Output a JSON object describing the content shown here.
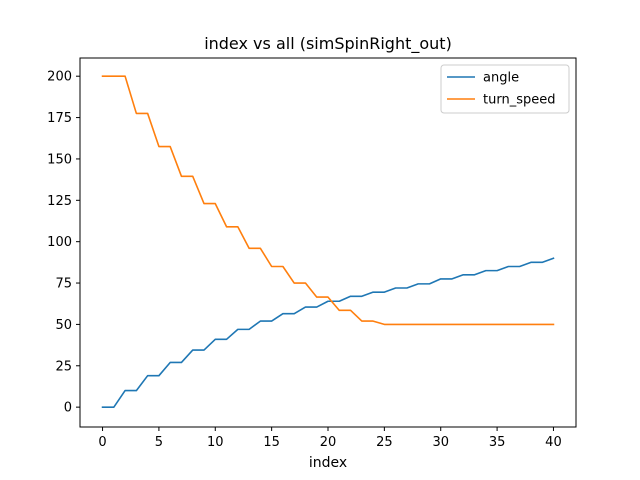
{
  "chart_data": {
    "type": "line",
    "title": "index vs all (simSpinRight_out)",
    "xlabel": "index",
    "ylabel": "",
    "xlim": [
      -2,
      42
    ],
    "ylim": [
      -12,
      211
    ],
    "xticks": [
      0,
      5,
      10,
      15,
      20,
      25,
      30,
      35,
      40
    ],
    "yticks": [
      0,
      25,
      50,
      75,
      100,
      125,
      150,
      175,
      200
    ],
    "grid": false,
    "legend_position": "top-right",
    "x": [
      0,
      1,
      2,
      3,
      4,
      5,
      6,
      7,
      8,
      9,
      10,
      11,
      12,
      13,
      14,
      15,
      16,
      17,
      18,
      19,
      20,
      21,
      22,
      23,
      24,
      25,
      26,
      27,
      28,
      29,
      30,
      31,
      32,
      33,
      34,
      35,
      36,
      37,
      38,
      39,
      40
    ],
    "series": [
      {
        "name": "angle",
        "color": "#1f77b4",
        "values": [
          0,
          0,
          10,
          10,
          19,
          19,
          27,
          27,
          34.5,
          34.5,
          41,
          41,
          47,
          47,
          52,
          52,
          56.5,
          56.5,
          60.5,
          60.5,
          64,
          64,
          67,
          67,
          69.5,
          69.5,
          72,
          72,
          74.5,
          74.5,
          77.5,
          77.5,
          80,
          80,
          82.5,
          82.5,
          85,
          85,
          87.5,
          87.5,
          90
        ]
      },
      {
        "name": "turn_speed",
        "color": "#ff7f0e",
        "values": [
          200,
          200,
          200,
          177.5,
          177.5,
          157.5,
          157.5,
          139.5,
          139.5,
          123,
          123,
          109,
          109,
          96,
          96,
          85,
          85,
          75,
          75,
          66.5,
          66.5,
          58.5,
          58.5,
          52,
          52,
          50,
          50,
          50,
          50,
          50,
          50,
          50,
          50,
          50,
          50,
          50,
          50,
          50,
          50,
          50,
          50
        ]
      }
    ]
  }
}
